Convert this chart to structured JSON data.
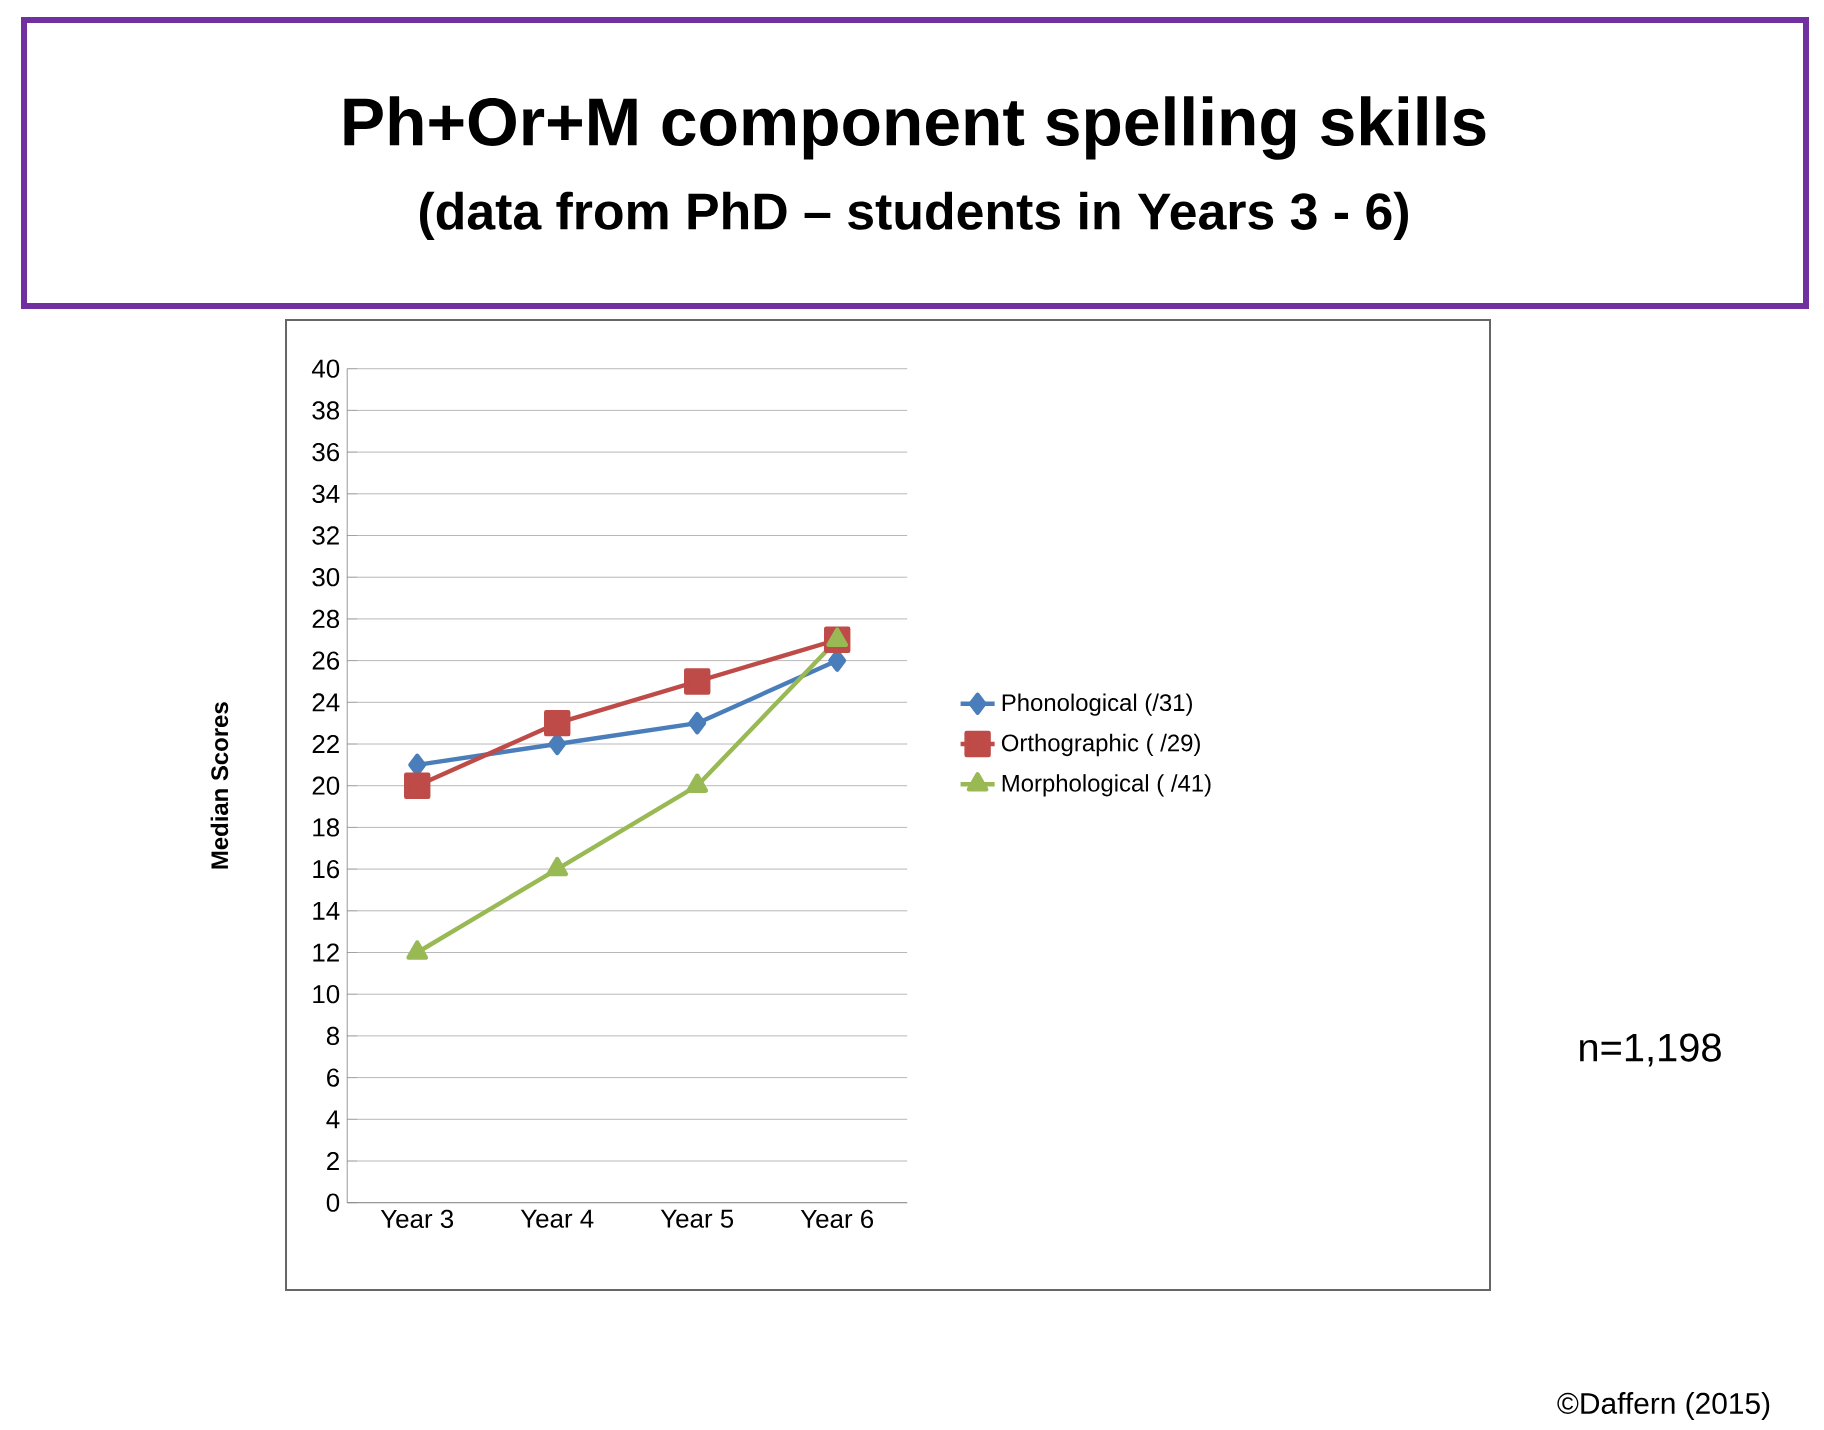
{
  "chart_data": {
    "type": "line",
    "title": "Ph+Or+M component spelling skills",
    "subtitle": "(data from PhD – students in Years 3 - 6)",
    "ylabel": "Median Scores",
    "categories": [
      "Year 3",
      "Year 4",
      "Year 5",
      "Year 6"
    ],
    "series": [
      {
        "name": "Phonological (/31)",
        "color": "#4a7ebb",
        "marker": "diamond",
        "values": [
          21,
          22,
          23,
          26
        ]
      },
      {
        "name": "Orthographic ( /29)",
        "color": "#be4b48",
        "marker": "square",
        "values": [
          20,
          23,
          25,
          27
        ]
      },
      {
        "name": "Morphological ( /41)",
        "color": "#98b954",
        "marker": "triangle",
        "values": [
          12,
          16,
          20,
          27
        ]
      }
    ],
    "ylim": [
      0,
      40
    ],
    "yticks": [
      0,
      2,
      4,
      6,
      8,
      10,
      12,
      14,
      16,
      18,
      20,
      22,
      24,
      26,
      28,
      30,
      32,
      34,
      36,
      38,
      40
    ],
    "grid": "y",
    "legend": "right",
    "line_style": "solid",
    "annotations": [
      "n=1,198",
      "©Daffern (2015)"
    ]
  }
}
